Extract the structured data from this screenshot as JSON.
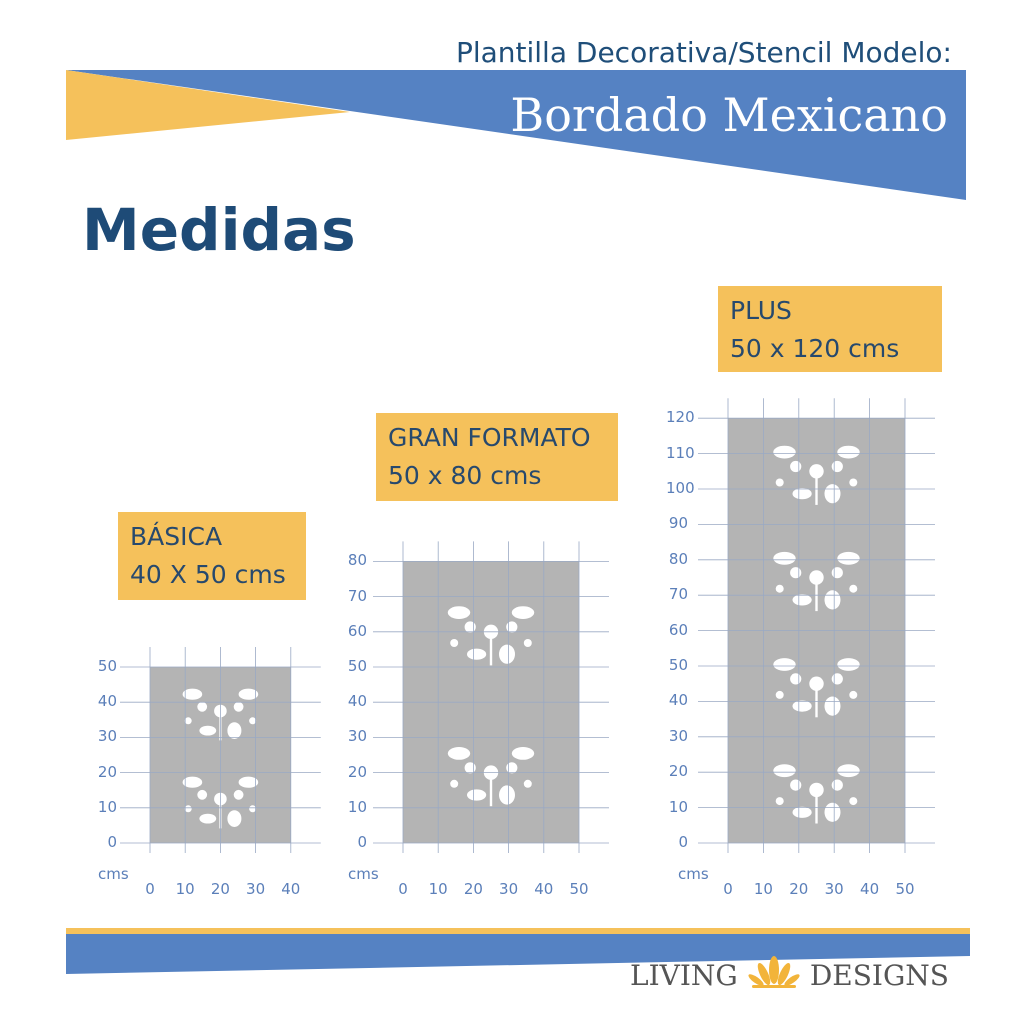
{
  "header": {
    "subtitle": "Plantilla Decorativa/Stencil Modelo:",
    "title": "Bordado Mexicano"
  },
  "heading": "Medidas",
  "colors": {
    "blue": "#5582c3",
    "yellow": "#f5c15b",
    "dark_blue": "#1e4b77",
    "stencil_gray": "#b4b4b4"
  },
  "stencils": [
    {
      "name": "BÁSICA",
      "size": "40 X 50 cms",
      "y_ticks": [
        "50",
        "40",
        "30",
        "20",
        "10",
        "0"
      ],
      "x_ticks": [
        "0",
        "10",
        "20",
        "30",
        "40"
      ],
      "unit": "cms"
    },
    {
      "name": "GRAN FORMATO",
      "size": "50 x 80 cms",
      "y_ticks": [
        "80",
        "70",
        "60",
        "50",
        "40",
        "30",
        "20",
        "10",
        "0"
      ],
      "x_ticks": [
        "0",
        "10",
        "20",
        "30",
        "40",
        "50"
      ],
      "unit": "cms"
    },
    {
      "name": "PLUS",
      "size": "50 x 120 cms",
      "y_ticks": [
        "120",
        "110",
        "100",
        "90",
        "80",
        "70",
        "60",
        "50",
        "40",
        "30",
        "20",
        "10",
        "0"
      ],
      "x_ticks": [
        "0",
        "10",
        "20",
        "30",
        "40",
        "50"
      ],
      "unit": "cms"
    }
  ],
  "footer": {
    "brand_left": "LIVING",
    "brand_right": "DESIGNS",
    "logo_icon": "lotus-icon"
  }
}
